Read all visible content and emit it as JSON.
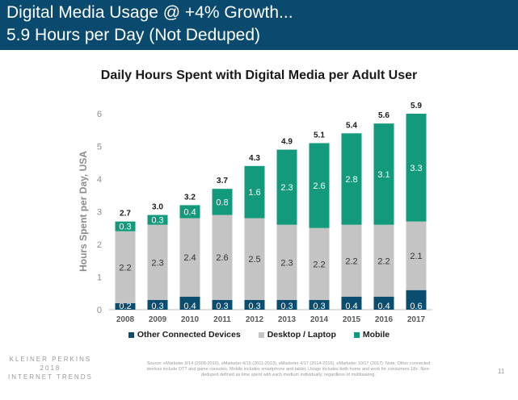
{
  "header": {
    "line1": "Digital Media Usage @ +4% Growth...",
    "line2": "5.9 Hours per Day (Not Deduped)"
  },
  "chart_data": {
    "type": "bar",
    "stacked": true,
    "title": "Daily Hours Spent with Digital Media per Adult User",
    "xlabel": "",
    "ylabel": "Hours Spent per Day, USA",
    "ylim": [
      0,
      6
    ],
    "yticks": [
      "0",
      "1",
      "2",
      "3",
      "4",
      "5",
      "6"
    ],
    "grid": false,
    "legend": "bottom",
    "categories": [
      "2008",
      "2009",
      "2010",
      "2011",
      "2012",
      "2013",
      "2014",
      "2015",
      "2016",
      "2017"
    ],
    "totals": [
      "2.7",
      "3.0",
      "3.2",
      "3.7",
      "4.3",
      "4.9",
      "5.1",
      "5.4",
      "5.6",
      "5.9"
    ],
    "series": [
      {
        "name": "Other Connected Devices",
        "color": "#0b4d6f",
        "values": [
          0.2,
          0.3,
          0.4,
          0.3,
          0.3,
          0.3,
          0.3,
          0.4,
          0.4,
          0.6
        ],
        "labels": [
          "0.2",
          "0.3",
          "0.4",
          "0.3",
          "0.3",
          "0.3",
          "0.3",
          "0.4",
          "0.4",
          "0.6"
        ]
      },
      {
        "name": "Desktop / Laptop",
        "color": "#c4c4c4",
        "values": [
          2.2,
          2.3,
          2.4,
          2.6,
          2.5,
          2.3,
          2.2,
          2.2,
          2.2,
          2.1
        ],
        "labels": [
          "2.2",
          "2.3",
          "2.4",
          "2.6",
          "2.5",
          "2.3",
          "2.2",
          "2.2",
          "2.2",
          "2.1"
        ]
      },
      {
        "name": "Mobile",
        "color": "#139a7c",
        "values": [
          0.3,
          0.3,
          0.4,
          0.8,
          1.6,
          2.3,
          2.6,
          2.8,
          3.1,
          3.3
        ],
        "labels": [
          "0.3",
          "0.3",
          "0.4",
          "0.8",
          "1.6",
          "2.3",
          "2.6",
          "2.8",
          "3.1",
          "3.3"
        ]
      }
    ]
  },
  "footer": {
    "logo_line1": "KLEINER PERKINS",
    "logo_line2": "2018",
    "logo_line3": "INTERNET TRENDS",
    "source": "Source: eMarketer 9/14 (2008-2010), eMarketer 4/15 (2011-2013), eMarketer 4/17 (2014-2016), eMarketer 10/17 (2017). Note: Other connected devices include OTT and game consoles. Mobile includes smartphone and tablet. Usage includes both home and work for consumers 18+. Non-deduped defined as time spent with each medium individually, regardless of multitasking.",
    "page_number": "11"
  }
}
